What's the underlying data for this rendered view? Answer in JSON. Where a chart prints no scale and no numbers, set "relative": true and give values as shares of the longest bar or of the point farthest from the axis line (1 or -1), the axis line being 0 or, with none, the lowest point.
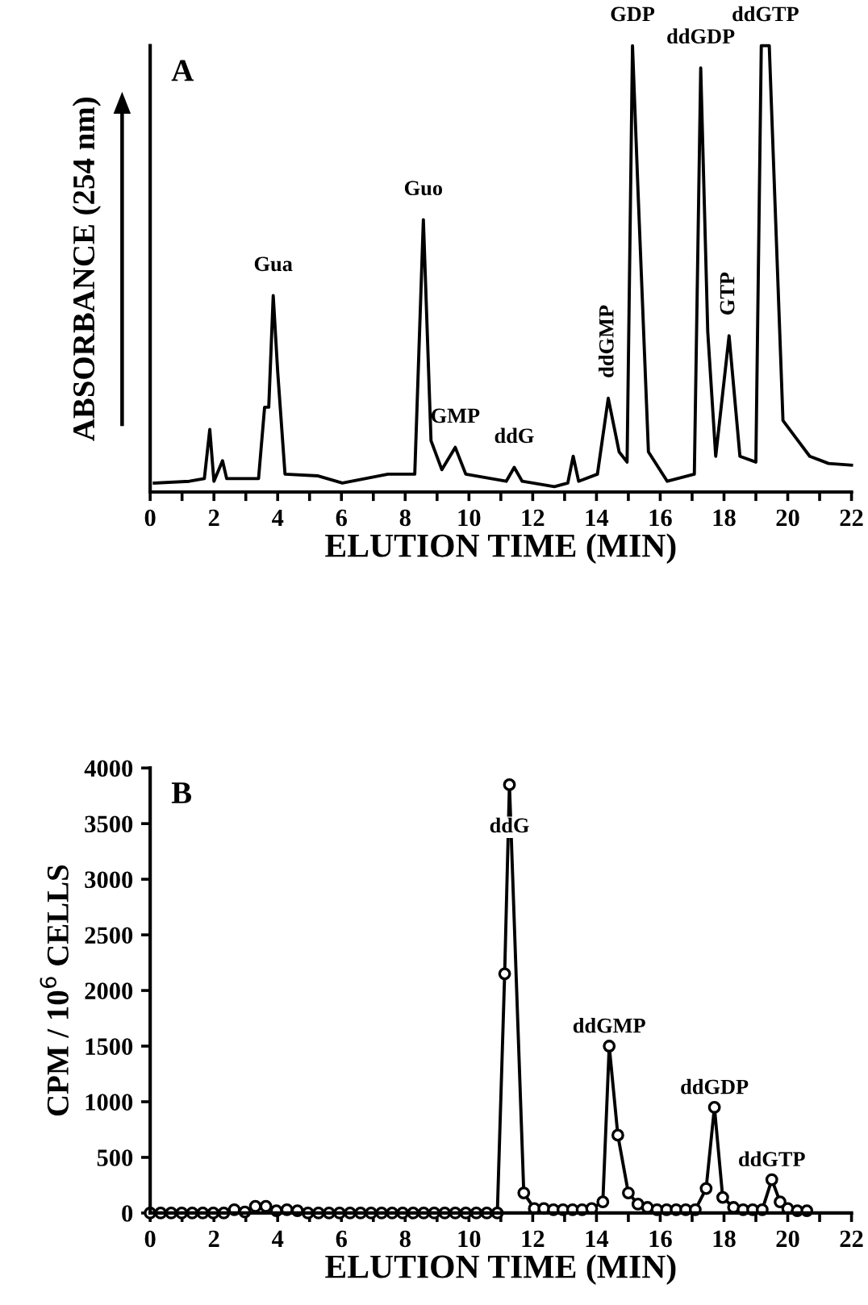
{
  "chart_data": [
    {
      "type": "line",
      "title": "A",
      "xlabel": "ELUTION TIME (MIN)",
      "ylabel": "ABSORBANCE (254 nm)",
      "relative": true,
      "marker": "none",
      "line_style": "solid",
      "grid": false,
      "legend": false,
      "xlim": [
        0,
        22
      ],
      "xticks": [
        0,
        {
          "value": 1,
          "label": null
        },
        2,
        {
          "value": 3,
          "label": null
        },
        4,
        {
          "value": 5,
          "label": null
        },
        6,
        {
          "value": 7,
          "label": null
        },
        8,
        {
          "value": 9,
          "label": null
        },
        10,
        {
          "value": 11,
          "label": null
        },
        12,
        {
          "value": 13,
          "label": null
        },
        14,
        {
          "value": 15,
          "label": null
        },
        16,
        {
          "value": 17,
          "label": null
        },
        18,
        {
          "value": 19,
          "label": null
        },
        20,
        {
          "value": 21,
          "label": null
        },
        22
      ],
      "series": [
        {
          "color": "#000000",
          "x": [
            0.13,
            1.23,
            1.7,
            1.87,
            2.0,
            2.27,
            2.4,
            3.4,
            3.59,
            3.72,
            3.86,
            4.0,
            4.23,
            5.27,
            6.03,
            7.46,
            8.3,
            8.57,
            8.81,
            9.15,
            9.57,
            9.9,
            11.17,
            11.42,
            11.67,
            12.68,
            13.1,
            13.27,
            13.44,
            14.03,
            14.37,
            14.71,
            14.96,
            15.13,
            15.3,
            15.63,
            16.22,
            17.07,
            17.27,
            17.49,
            17.74,
            18.16,
            18.5,
            19.0,
            19.17,
            19.42,
            19.85,
            20.27,
            20.69,
            21.28,
            22.0
          ],
          "values": [
            0.02,
            0.024,
            0.03,
            0.14,
            0.024,
            0.07,
            0.03,
            0.03,
            0.19,
            0.19,
            0.44,
            0.27,
            0.04,
            0.036,
            0.02,
            0.04,
            0.04,
            0.61,
            0.115,
            0.05,
            0.1,
            0.04,
            0.024,
            0.055,
            0.024,
            0.012,
            0.02,
            0.08,
            0.024,
            0.04,
            0.21,
            0.09,
            0.067,
            1.0,
            0.68,
            0.09,
            0.024,
            0.04,
            0.95,
            0.36,
            0.08,
            0.35,
            0.08,
            0.067,
            1.0,
            1.0,
            0.16,
            0.12,
            0.08,
            0.064,
            0.06
          ]
        }
      ],
      "annotations": [
        {
          "text": "Gua",
          "x": 3.86,
          "y": 0.44
        },
        {
          "text": "Guo",
          "x": 8.57,
          "y": 0.61
        },
        {
          "text": "GMP",
          "x": 9.57,
          "y": 0.1
        },
        {
          "text": "ddG",
          "x": 11.42,
          "y": 0.055
        },
        {
          "text": "ddGMP",
          "x": 14.37,
          "y": 0.21
        },
        {
          "text": "GDP",
          "x": 15.13,
          "y": 1.0
        },
        {
          "text": "ddGDP",
          "x": 17.27,
          "y": 0.95
        },
        {
          "text": "GTP",
          "x": 18.16,
          "y": 0.35
        },
        {
          "text": "ddGTP",
          "x": 19.3,
          "y": 1.0
        }
      ]
    },
    {
      "type": "line",
      "title": "B",
      "xlabel": "ELUTION TIME (MIN)",
      "ylabel": "CPM / 10$^{6}$ CELLS",
      "marker": "circle",
      "line_style": "solid",
      "grid": false,
      "legend": false,
      "xlim": [
        0,
        22
      ],
      "xticks": [
        0,
        {
          "value": 1,
          "label": null
        },
        2,
        {
          "value": 3,
          "label": null
        },
        4,
        {
          "value": 5,
          "label": null
        },
        6,
        {
          "value": 7,
          "label": null
        },
        8,
        {
          "value": 9,
          "label": null
        },
        10,
        {
          "value": 11,
          "label": null
        },
        12,
        {
          "value": 13,
          "label": null
        },
        14,
        {
          "value": 15,
          "label": null
        },
        16,
        {
          "value": 17,
          "label": null
        },
        18,
        {
          "value": 19,
          "label": null
        },
        20,
        {
          "value": 21,
          "label": null
        },
        22
      ],
      "ylim": [
        0,
        4000
      ],
      "yticks": [
        0,
        500,
        1000,
        1500,
        2000,
        2500,
        3000,
        3500,
        4000
      ],
      "series": [
        {
          "color": "#000000",
          "x": [
            0,
            0.33,
            0.66,
            0.99,
            1.32,
            1.65,
            1.98,
            2.31,
            2.64,
            2.97,
            3.3,
            3.63,
            3.96,
            4.29,
            4.62,
            4.95,
            5.28,
            5.61,
            5.94,
            6.27,
            6.6,
            6.93,
            7.26,
            7.59,
            7.92,
            8.25,
            8.58,
            8.91,
            9.24,
            9.57,
            9.9,
            10.23,
            10.56,
            10.89,
            11.12,
            11.27,
            11.72,
            12.05,
            12.35,
            12.65,
            12.95,
            13.25,
            13.55,
            13.85,
            14.2,
            14.4,
            14.67,
            15.0,
            15.3,
            15.6,
            15.9,
            16.2,
            16.5,
            16.8,
            17.1,
            17.44,
            17.7,
            17.96,
            18.3,
            18.6,
            18.9,
            19.2,
            19.5,
            19.76,
            20.0,
            20.3,
            20.6
          ],
          "values": [
            0,
            0,
            0,
            0,
            0,
            0,
            0,
            0,
            30,
            10,
            60,
            60,
            20,
            30,
            20,
            0,
            0,
            0,
            0,
            0,
            0,
            0,
            0,
            0,
            0,
            0,
            0,
            0,
            0,
            0,
            0,
            0,
            0,
            0,
            2150,
            3850,
            180,
            40,
            40,
            30,
            30,
            30,
            30,
            40,
            100,
            1500,
            700,
            180,
            80,
            50,
            30,
            30,
            30,
            30,
            30,
            220,
            950,
            140,
            50,
            30,
            30,
            30,
            300,
            100,
            40,
            20,
            20
          ]
        }
      ],
      "annotations": [
        {
          "text": "ddG",
          "x": 11.27,
          "y": 3300
        },
        {
          "text": "ddGMP",
          "x": 14.4,
          "y": 1500
        },
        {
          "text": "ddGDP",
          "x": 17.7,
          "y": 950
        },
        {
          "text": "ddGTP",
          "x": 19.5,
          "y": 300
        }
      ]
    }
  ]
}
